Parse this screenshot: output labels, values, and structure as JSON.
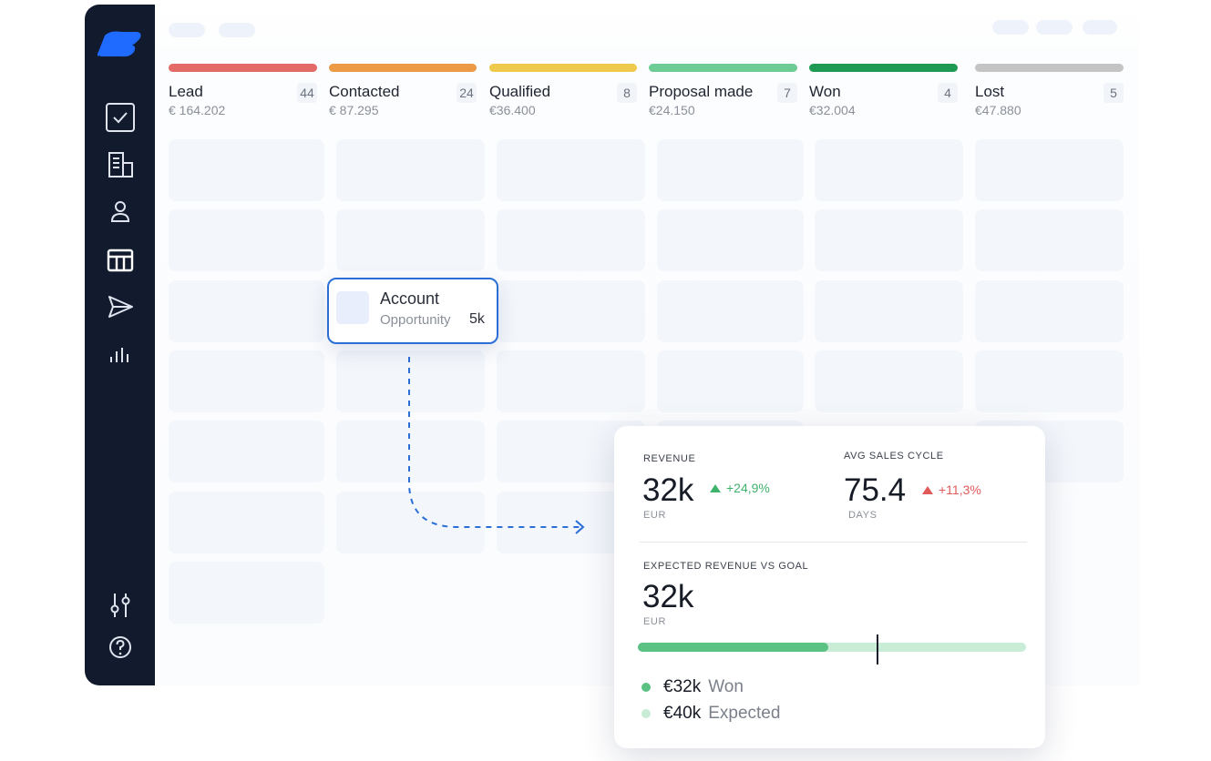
{
  "stages": [
    {
      "name": "Lead",
      "count": "44",
      "amount": "€ 164.202",
      "color": "#e36a66"
    },
    {
      "name": "Contacted",
      "count": "24",
      "amount": "€ 87.295",
      "color": "#ec9a46"
    },
    {
      "name": "Qualified",
      "count": "8",
      "amount": "€36.400",
      "color": "#efc94c"
    },
    {
      "name": "Proposal made",
      "count": "7",
      "amount": "€24.150",
      "color": "#6ccc94"
    },
    {
      "name": "Won",
      "count": "4",
      "amount": "€32.004",
      "color": "#1f9a55"
    },
    {
      "name": "Lost",
      "count": "5",
      "amount": "€47.880",
      "color": "#c4c4c4"
    }
  ],
  "sidebar": {
    "items": [
      "tasks-icon",
      "companies-icon",
      "contacts-icon",
      "pipeline-icon",
      "send-icon",
      "reports-icon"
    ],
    "bottom_items": [
      "settings-sliders-icon",
      "help-icon"
    ],
    "accent": "#1f6bff"
  },
  "drag_card": {
    "title": "Account",
    "subtitle": "Opportunity",
    "value": "5k"
  },
  "kpis": {
    "revenue": {
      "label": "REVENUE",
      "value": "32k",
      "unit": "EUR",
      "delta": "+24,9%",
      "delta_color": "#3fb36b"
    },
    "cycle": {
      "label": "AVG SALES CYCLE",
      "value": "75.4",
      "unit": "DAYS",
      "delta": "+11,3%",
      "delta_color": "#e05a5a"
    },
    "goal": {
      "label": "EXPECTED REVENUE VS GOAL",
      "value": "32k",
      "unit": "EUR",
      "won_fraction": 0.49,
      "goal_marker_fraction": 0.615,
      "legend": [
        {
          "amount": "€32k",
          "label": "Won",
          "color": "#5cc283"
        },
        {
          "amount": "€40k",
          "label": "Expected",
          "color": "#c8ecd6"
        }
      ]
    }
  }
}
